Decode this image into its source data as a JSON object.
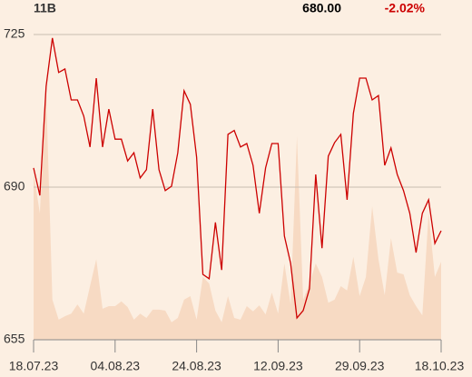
{
  "chart_data": {
    "type": "line",
    "volume_label": "11B",
    "last_price": "680.00",
    "change": "-2.02%",
    "categories": [
      "18.07.23",
      null,
      null,
      null,
      null,
      null,
      null,
      null,
      null,
      null,
      null,
      null,
      null,
      "04.08.23",
      null,
      null,
      null,
      null,
      null,
      null,
      null,
      null,
      null,
      null,
      null,
      null,
      "24.08.23",
      null,
      null,
      null,
      null,
      null,
      null,
      null,
      null,
      null,
      null,
      null,
      null,
      "12.09.23",
      null,
      null,
      null,
      null,
      null,
      null,
      null,
      null,
      null,
      null,
      null,
      null,
      "29.09.23",
      null,
      null,
      null,
      null,
      null,
      null,
      null,
      null,
      null,
      null,
      null,
      null,
      "18.10.23"
    ],
    "series": [
      {
        "color": "#cc0000",
        "values": [
          694.4,
          688.1,
          713.1,
          724.2,
          716.3,
          717.1,
          710.0,
          710.0,
          706.3,
          699.2,
          715.0,
          699.2,
          707.9,
          701.0,
          701.0,
          696.0,
          697.9,
          692.1,
          694.0,
          707.9,
          694.0,
          689.2,
          690.2,
          697.9,
          712.1,
          709.0,
          696.9,
          670.0,
          669.0,
          681.9,
          671.0,
          702.1,
          703.0,
          699.2,
          700.0,
          695.0,
          684.0,
          694.4,
          700.0,
          700.0,
          678.8,
          672.5,
          660.0,
          661.7,
          666.7,
          692.9,
          676.0,
          697.1,
          700.2,
          702.1,
          687.1,
          706.9,
          715.0,
          715.0,
          710.0,
          711.0,
          695.0,
          699.0,
          692.9,
          689.2,
          684.0,
          675.0,
          684.0,
          687.1,
          677.1,
          680.0
        ]
      }
    ],
    "volume": {
      "color": "#f7dac3",
      "values": [
        693.3,
        684.0,
        712.1,
        664.2,
        659.6,
        660.4,
        661.0,
        663.1,
        661.0,
        667.3,
        673.5,
        662.1,
        662.7,
        662.7,
        663.8,
        662.5,
        659.6,
        661.0,
        660.0,
        661.9,
        661.9,
        661.7,
        659.0,
        660.0,
        664.2,
        665.0,
        659.6,
        669.4,
        667.9,
        661.7,
        659.0,
        665.0,
        660.0,
        659.6,
        662.7,
        661.5,
        662.9,
        660.8,
        665.8,
        661.0,
        672.5,
        663.1,
        701.7,
        664.2,
        667.9,
        672.5,
        669.4,
        663.5,
        664.2,
        667.3,
        666.3,
        674.0,
        665.0,
        669.4,
        685.6,
        673.5,
        665.2,
        678.3,
        670.4,
        670.0,
        665.2,
        662.7,
        660.6,
        684.0,
        669.4,
        672.9
      ]
    },
    "ylim": [
      655,
      725
    ],
    "yticks": [
      655,
      690,
      725
    ],
    "grid": true
  }
}
